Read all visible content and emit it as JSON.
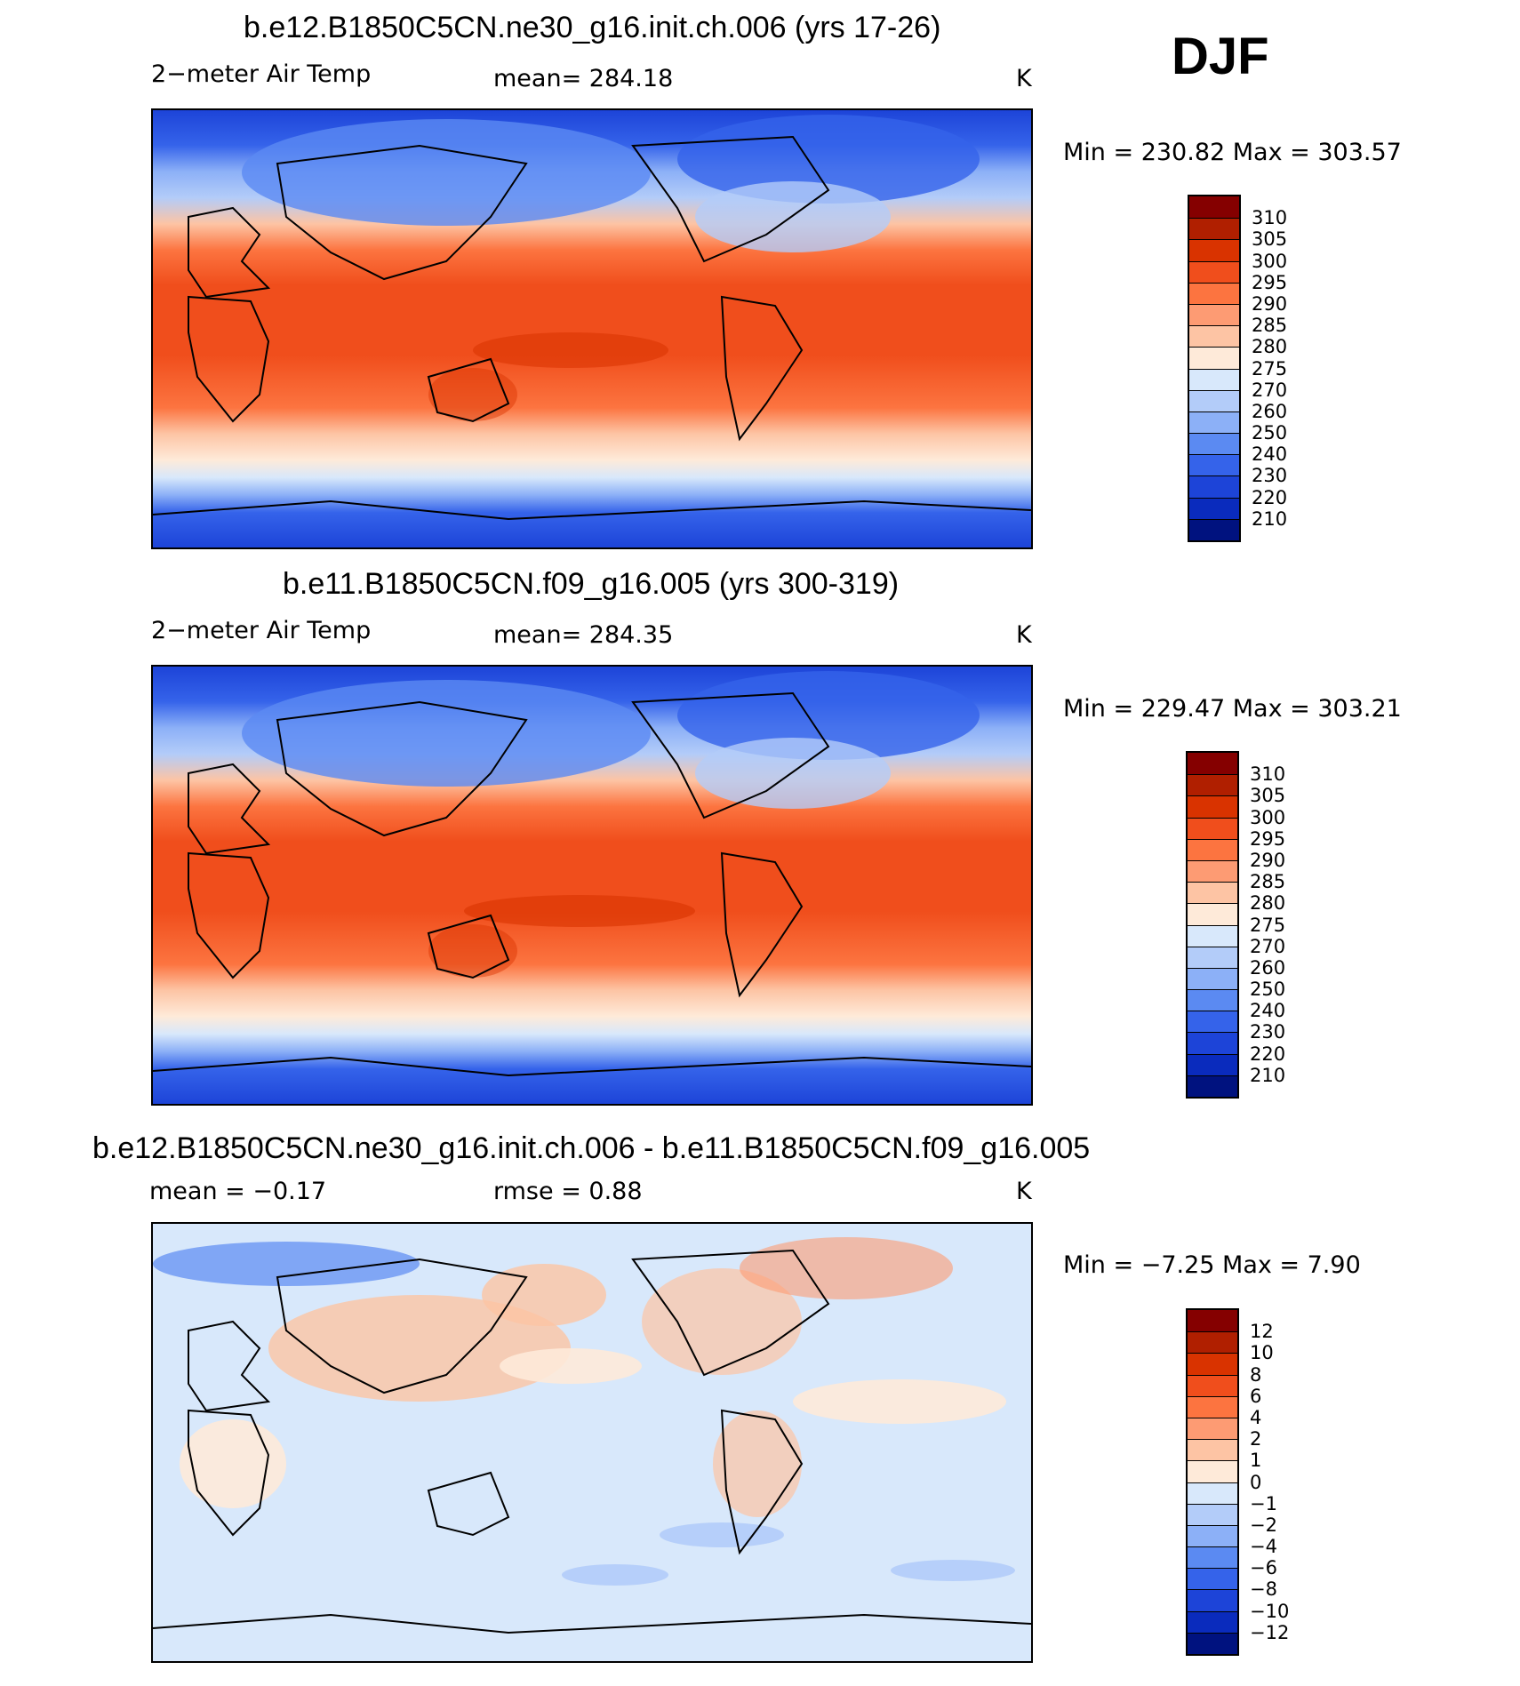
{
  "season": "DJF",
  "unit": "K",
  "panels": [
    {
      "title": "b.e12.B1850C5CN.ne30_g16.init.ch.006 (yrs 17-26)",
      "left_label": "2−meter Air Temp",
      "center_label": "mean=  284.18",
      "right_label": "K",
      "minmax": "Min  =  230.82  Max  =  303.57",
      "colorbar": {
        "labels": [
          "310",
          "305",
          "300",
          "295",
          "290",
          "285",
          "280",
          "275",
          "270",
          "260",
          "250",
          "240",
          "230",
          "220",
          "210"
        ],
        "colors": [
          "#850000",
          "#b01f00",
          "#d93300",
          "#f04e1c",
          "#fc7440",
          "#fd9b73",
          "#fdc4a4",
          "#feead9",
          "#d8e8fb",
          "#b3ccf9",
          "#8cb0f7",
          "#5b8af2",
          "#3563ea",
          "#1d44d8",
          "#0a2bbd",
          "#00127f"
        ]
      },
      "chart_data": {
        "type": "heatmap",
        "title": "b.e12.B1850C5CN.ne30_g16.init.ch.006 (yrs 17-26)",
        "variable": "2−meter Air Temp",
        "mean": 284.18,
        "min": 230.82,
        "max": 303.57,
        "unit": "K",
        "levels": [
          210,
          220,
          230,
          240,
          250,
          260,
          270,
          275,
          280,
          285,
          290,
          295,
          300,
          305,
          310
        ]
      }
    },
    {
      "title": "b.e11.B1850C5CN.f09_g16.005 (yrs 300-319)",
      "left_label": "2−meter Air Temp",
      "center_label": "mean=  284.35",
      "right_label": "K",
      "minmax": "Min  =  229.47  Max  =  303.21",
      "colorbar": {
        "labels": [
          "310",
          "305",
          "300",
          "295",
          "290",
          "285",
          "280",
          "275",
          "270",
          "260",
          "250",
          "240",
          "230",
          "220",
          "210"
        ],
        "colors": [
          "#850000",
          "#b01f00",
          "#d93300",
          "#f04e1c",
          "#fc7440",
          "#fd9b73",
          "#fdc4a4",
          "#feead9",
          "#d8e8fb",
          "#b3ccf9",
          "#8cb0f7",
          "#5b8af2",
          "#3563ea",
          "#1d44d8",
          "#0a2bbd",
          "#00127f"
        ]
      },
      "chart_data": {
        "type": "heatmap",
        "title": "b.e11.B1850C5CN.f09_g16.005 (yrs 300-319)",
        "variable": "2−meter Air Temp",
        "mean": 284.35,
        "min": 229.47,
        "max": 303.21,
        "unit": "K",
        "levels": [
          210,
          220,
          230,
          240,
          250,
          260,
          270,
          275,
          280,
          285,
          290,
          295,
          300,
          305,
          310
        ]
      }
    },
    {
      "title": "b.e12.B1850C5CN.ne30_g16.init.ch.006 - b.e11.B1850C5CN.f09_g16.005",
      "left_label": "mean  =    −0.17",
      "center_label": "rmse  =     0.88",
      "right_label": "K",
      "minmax": "Min  =    −7.25  Max  =     7.90",
      "colorbar": {
        "labels": [
          "12",
          "10",
          "8",
          "6",
          "4",
          "2",
          "1",
          "0",
          "−1",
          "−2",
          "−4",
          "−6",
          "−8",
          "−10",
          "−12"
        ],
        "colors": [
          "#850000",
          "#b01f00",
          "#d93300",
          "#f04e1c",
          "#fc7440",
          "#fd9b73",
          "#fdc4a4",
          "#feead9",
          "#d8e8fb",
          "#b3ccf9",
          "#8cb0f7",
          "#5b8af2",
          "#3563ea",
          "#1d44d8",
          "#0a2bbd",
          "#00127f"
        ]
      },
      "chart_data": {
        "type": "heatmap",
        "title": "b.e12.B1850C5CN.ne30_g16.init.ch.006 - b.e11.B1850C5CN.f09_g16.005",
        "mean": -0.17,
        "rmse": 0.88,
        "min": -7.25,
        "max": 7.9,
        "unit": "K",
        "levels": [
          -12,
          -10,
          -8,
          -6,
          -4,
          -2,
          -1,
          0,
          1,
          2,
          4,
          6,
          8,
          10,
          12
        ]
      }
    }
  ]
}
